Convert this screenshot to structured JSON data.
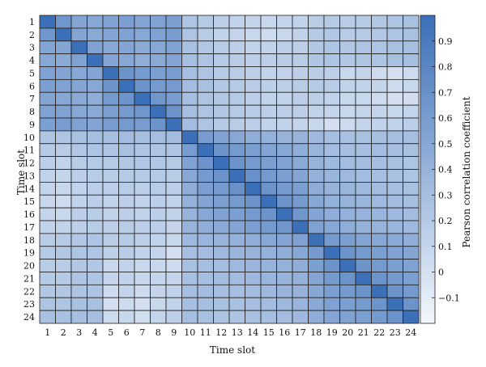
{
  "chart_data": {
    "type": "heatmap",
    "title": "",
    "xlabel": "Time slot",
    "ylabel": "Time slot",
    "categories_x": [
      "1",
      "2",
      "3",
      "4",
      "5",
      "6",
      "7",
      "8",
      "9",
      "10",
      "11",
      "12",
      "13",
      "14",
      "15",
      "16",
      "17",
      "18",
      "19",
      "20",
      "21",
      "22",
      "23",
      "24"
    ],
    "categories_y": [
      "1",
      "2",
      "3",
      "4",
      "5",
      "6",
      "7",
      "8",
      "9",
      "10",
      "11",
      "12",
      "13",
      "14",
      "15",
      "16",
      "17",
      "18",
      "19",
      "20",
      "21",
      "22",
      "23",
      "24"
    ],
    "colorbar": {
      "label": "Pearson correlation coefficient",
      "range": [
        -0.2,
        1.0
      ],
      "ticks": [
        -0.1,
        0,
        0.1,
        0.2,
        0.3,
        0.4,
        0.5,
        0.6,
        0.7,
        0.8,
        0.9
      ],
      "tick_labels": [
        "−0.1",
        "0",
        "0.1",
        "0.2",
        "0.3",
        "0.4",
        "0.5",
        "0.6",
        "0.7",
        "0.8",
        "0.9"
      ],
      "low_color": "#f2f7fc",
      "high_color": "#3b6fb8"
    },
    "values": [
      [
        1.0,
        0.65,
        0.52,
        0.5,
        0.55,
        0.58,
        0.52,
        0.55,
        0.58,
        0.25,
        0.2,
        0.15,
        0.12,
        0.1,
        0.08,
        0.1,
        0.12,
        0.18,
        0.2,
        0.18,
        0.2,
        0.22,
        0.25,
        0.28
      ],
      [
        0.65,
        1.0,
        0.52,
        0.48,
        0.52,
        0.55,
        0.5,
        0.55,
        0.6,
        0.25,
        0.18,
        0.12,
        0.1,
        0.08,
        0.05,
        0.08,
        0.12,
        0.2,
        0.22,
        0.18,
        0.2,
        0.22,
        0.25,
        0.28
      ],
      [
        0.52,
        0.52,
        1.0,
        0.55,
        0.5,
        0.52,
        0.48,
        0.5,
        0.55,
        0.28,
        0.22,
        0.18,
        0.15,
        0.12,
        0.12,
        0.15,
        0.15,
        0.22,
        0.25,
        0.22,
        0.25,
        0.25,
        0.28,
        0.3
      ],
      [
        0.5,
        0.48,
        0.55,
        1.0,
        0.52,
        0.5,
        0.45,
        0.48,
        0.52,
        0.3,
        0.25,
        0.2,
        0.18,
        0.15,
        0.15,
        0.18,
        0.18,
        0.25,
        0.25,
        0.22,
        0.25,
        0.25,
        0.28,
        0.3
      ],
      [
        0.55,
        0.52,
        0.5,
        0.52,
        1.0,
        0.68,
        0.62,
        0.58,
        0.6,
        0.3,
        0.25,
        0.2,
        0.18,
        0.15,
        0.12,
        0.12,
        0.15,
        0.18,
        0.15,
        0.08,
        0.1,
        0.05,
        0.0,
        0.05
      ],
      [
        0.58,
        0.55,
        0.52,
        0.5,
        0.68,
        1.0,
        0.68,
        0.62,
        0.62,
        0.32,
        0.28,
        0.22,
        0.2,
        0.18,
        0.15,
        0.15,
        0.18,
        0.2,
        0.18,
        0.12,
        0.12,
        0.1,
        0.05,
        0.08
      ],
      [
        0.52,
        0.5,
        0.48,
        0.45,
        0.62,
        0.68,
        1.0,
        0.65,
        0.6,
        0.3,
        0.25,
        0.22,
        0.2,
        0.15,
        0.12,
        0.12,
        0.15,
        0.15,
        0.12,
        0.08,
        0.08,
        0.05,
        0.0,
        0.02
      ],
      [
        0.55,
        0.55,
        0.5,
        0.48,
        0.58,
        0.62,
        0.65,
        1.0,
        0.68,
        0.3,
        0.25,
        0.22,
        0.2,
        0.18,
        0.15,
        0.15,
        0.15,
        0.12,
        0.1,
        0.08,
        0.1,
        0.1,
        0.08,
        0.1
      ],
      [
        0.58,
        0.6,
        0.55,
        0.52,
        0.6,
        0.62,
        0.6,
        0.68,
        1.0,
        0.32,
        0.25,
        0.2,
        0.18,
        0.15,
        0.12,
        0.12,
        0.1,
        0.08,
        0.0,
        0.05,
        0.1,
        0.12,
        0.12,
        0.15
      ],
      [
        0.25,
        0.25,
        0.28,
        0.3,
        0.3,
        0.32,
        0.3,
        0.3,
        0.32,
        1.0,
        0.6,
        0.55,
        0.5,
        0.45,
        0.42,
        0.4,
        0.4,
        0.35,
        0.3,
        0.28,
        0.28,
        0.3,
        0.3,
        0.3
      ],
      [
        0.2,
        0.18,
        0.22,
        0.25,
        0.25,
        0.28,
        0.25,
        0.25,
        0.25,
        0.6,
        1.0,
        0.68,
        0.62,
        0.58,
        0.52,
        0.5,
        0.45,
        0.38,
        0.32,
        0.3,
        0.3,
        0.32,
        0.3,
        0.28
      ],
      [
        0.15,
        0.12,
        0.18,
        0.2,
        0.2,
        0.22,
        0.22,
        0.22,
        0.2,
        0.55,
        0.68,
        1.0,
        0.68,
        0.62,
        0.58,
        0.55,
        0.48,
        0.4,
        0.35,
        0.32,
        0.32,
        0.3,
        0.28,
        0.25
      ],
      [
        0.12,
        0.1,
        0.15,
        0.18,
        0.18,
        0.2,
        0.2,
        0.2,
        0.18,
        0.5,
        0.62,
        0.68,
        1.0,
        0.7,
        0.62,
        0.58,
        0.52,
        0.42,
        0.38,
        0.35,
        0.32,
        0.3,
        0.28,
        0.25
      ],
      [
        0.1,
        0.08,
        0.12,
        0.15,
        0.15,
        0.18,
        0.15,
        0.18,
        0.15,
        0.45,
        0.58,
        0.62,
        0.7,
        1.0,
        0.68,
        0.62,
        0.58,
        0.45,
        0.4,
        0.38,
        0.35,
        0.32,
        0.3,
        0.28
      ],
      [
        0.08,
        0.05,
        0.12,
        0.15,
        0.12,
        0.15,
        0.12,
        0.15,
        0.12,
        0.42,
        0.52,
        0.58,
        0.62,
        0.68,
        1.0,
        0.68,
        0.62,
        0.5,
        0.42,
        0.4,
        0.38,
        0.35,
        0.32,
        0.3
      ],
      [
        0.1,
        0.08,
        0.15,
        0.18,
        0.12,
        0.15,
        0.12,
        0.15,
        0.12,
        0.4,
        0.5,
        0.55,
        0.58,
        0.62,
        0.68,
        1.0,
        0.65,
        0.52,
        0.45,
        0.42,
        0.4,
        0.38,
        0.35,
        0.32
      ],
      [
        0.12,
        0.12,
        0.15,
        0.18,
        0.15,
        0.18,
        0.15,
        0.15,
        0.1,
        0.4,
        0.45,
        0.48,
        0.52,
        0.58,
        0.62,
        0.65,
        1.0,
        0.55,
        0.5,
        0.45,
        0.42,
        0.4,
        0.38,
        0.35
      ],
      [
        0.18,
        0.2,
        0.22,
        0.25,
        0.18,
        0.2,
        0.15,
        0.12,
        0.08,
        0.35,
        0.38,
        0.4,
        0.42,
        0.45,
        0.5,
        0.52,
        0.55,
        1.0,
        0.62,
        0.58,
        0.52,
        0.5,
        0.48,
        0.45
      ],
      [
        0.2,
        0.22,
        0.25,
        0.25,
        0.15,
        0.18,
        0.12,
        0.1,
        0.0,
        0.3,
        0.32,
        0.35,
        0.38,
        0.4,
        0.42,
        0.45,
        0.5,
        0.62,
        1.0,
        0.68,
        0.62,
        0.58,
        0.55,
        0.52
      ],
      [
        0.18,
        0.18,
        0.22,
        0.22,
        0.08,
        0.12,
        0.08,
        0.08,
        0.05,
        0.28,
        0.3,
        0.32,
        0.35,
        0.38,
        0.4,
        0.42,
        0.45,
        0.58,
        0.68,
        1.0,
        0.68,
        0.62,
        0.58,
        0.55
      ],
      [
        0.2,
        0.2,
        0.25,
        0.25,
        0.1,
        0.12,
        0.08,
        0.1,
        0.1,
        0.28,
        0.3,
        0.32,
        0.32,
        0.35,
        0.38,
        0.4,
        0.42,
        0.52,
        0.62,
        0.68,
        1.0,
        0.68,
        0.62,
        0.58
      ],
      [
        0.22,
        0.22,
        0.25,
        0.25,
        0.05,
        0.1,
        0.05,
        0.1,
        0.12,
        0.3,
        0.32,
        0.3,
        0.3,
        0.32,
        0.35,
        0.38,
        0.4,
        0.5,
        0.58,
        0.62,
        0.68,
        1.0,
        0.68,
        0.62
      ],
      [
        0.25,
        0.25,
        0.28,
        0.28,
        0.0,
        0.05,
        0.0,
        0.08,
        0.12,
        0.3,
        0.3,
        0.28,
        0.28,
        0.3,
        0.32,
        0.35,
        0.38,
        0.48,
        0.55,
        0.58,
        0.62,
        0.68,
        1.0,
        0.68
      ],
      [
        0.28,
        0.28,
        0.3,
        0.3,
        0.05,
        0.08,
        0.02,
        0.1,
        0.15,
        0.3,
        0.28,
        0.25,
        0.25,
        0.28,
        0.3,
        0.32,
        0.35,
        0.45,
        0.52,
        0.55,
        0.58,
        0.62,
        0.68,
        1.0
      ]
    ]
  }
}
